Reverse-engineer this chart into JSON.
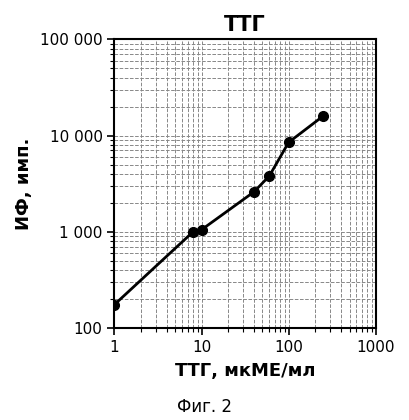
{
  "title": "ТТГ",
  "xlabel": "ТТГ, мкМЕ/мл",
  "ylabel": "ИФ, имп.",
  "caption": "Фиг. 2",
  "x_data": [
    1,
    8,
    10,
    40,
    60,
    100,
    250
  ],
  "y_data": [
    175,
    1000,
    1050,
    2600,
    3800,
    8500,
    16000
  ],
  "xlim": [
    1,
    1000
  ],
  "ylim": [
    100,
    100000
  ],
  "line_color": "#000000",
  "marker_color": "#000000",
  "marker_size": 7,
  "line_width": 2.0,
  "grid_color": "#888888",
  "grid_linestyle": "--",
  "grid_linewidth": 0.7,
  "bg_color": "#ffffff",
  "title_fontsize": 15,
  "label_fontsize": 13,
  "tick_fontsize": 11,
  "caption_fontsize": 12,
  "y_tick_labels": [
    "100",
    "1 000",
    "10 000",
    "100 000"
  ],
  "x_tick_labels": [
    "1",
    "10",
    "100",
    "1000"
  ],
  "x_tick_vals": [
    1,
    10,
    100,
    1000
  ],
  "y_tick_vals": [
    100,
    1000,
    10000,
    100000
  ]
}
